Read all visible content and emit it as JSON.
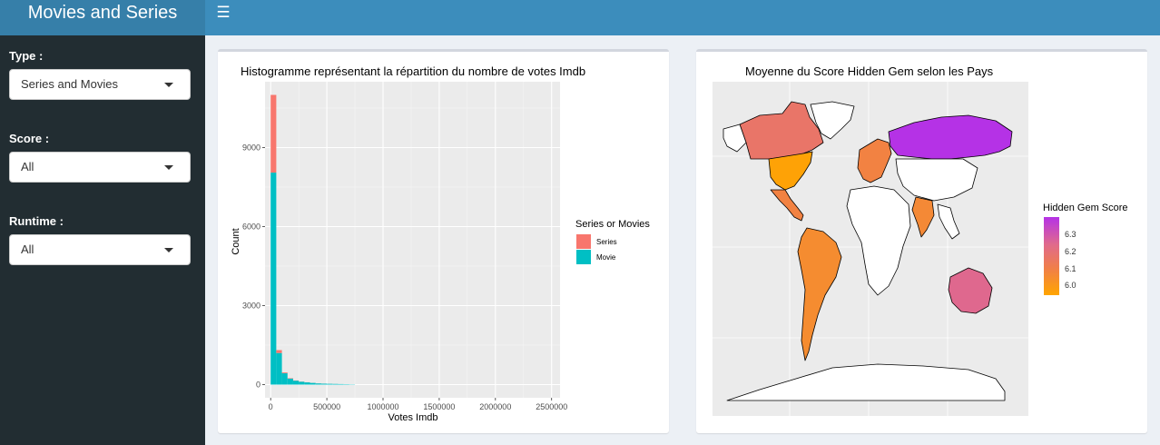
{
  "header": {
    "title": "Movies and Series",
    "menu_icon": "hamburger-icon"
  },
  "sidebar": {
    "filters": [
      {
        "label": "Type :",
        "value": "Series and Movies"
      },
      {
        "label": "Score :",
        "value": "All"
      },
      {
        "label": "Runtime :",
        "value": "All"
      }
    ]
  },
  "histogram": {
    "chart_data": {
      "type": "bar",
      "title": "Histogramme représentant la répartition du nombre de votes Imdb",
      "xlabel": "Votes Imdb",
      "ylabel": "Count",
      "stacked": true,
      "bin_width": 50000,
      "x_ticks": [
        0,
        500000,
        1000000,
        1500000,
        2000000,
        2500000
      ],
      "x_tick_labels": [
        "0",
        "500000",
        "1000000",
        "1500000",
        "2000000",
        "2500000"
      ],
      "y_ticks": [
        0,
        3000,
        6000,
        9000
      ],
      "y_tick_labels": [
        "0",
        "3000",
        "6000",
        "9000"
      ],
      "xlim": [
        -50000,
        2575000
      ],
      "ylim": [
        -500,
        11500
      ],
      "grid": true,
      "legend": {
        "title": "Series or Movies",
        "position": "right"
      },
      "bin_starts": [
        0,
        50000,
        100000,
        150000,
        200000,
        250000,
        300000,
        350000,
        400000,
        450000,
        500000,
        550000,
        600000,
        650000,
        700000
      ],
      "series": [
        {
          "name": "Movie",
          "color": "#00bfc4",
          "values": [
            8050,
            1200,
            430,
            230,
            150,
            110,
            85,
            65,
            45,
            35,
            30,
            25,
            20,
            15,
            10
          ]
        },
        {
          "name": "Series",
          "color": "#f8766d",
          "values": [
            2950,
            110,
            30,
            15,
            8,
            5,
            3,
            2,
            2,
            1,
            1,
            1,
            0,
            0,
            0
          ]
        }
      ],
      "legend_order": [
        "Series",
        "Movie"
      ]
    }
  },
  "map": {
    "title": "Moyenne du Score Hidden Gem selon les Pays",
    "legend": {
      "title": "Hidden Gem Score",
      "ticks": [
        "6.3",
        "6.2",
        "6.1",
        "6.0"
      ],
      "range": [
        5.97,
        6.34
      ],
      "colors": [
        "#ffa500",
        "#f07e4a",
        "#e06a8c",
        "#b532e6"
      ]
    },
    "regions": [
      {
        "name": "canada",
        "score": 6.15
      },
      {
        "name": "usa",
        "score": 5.98
      },
      {
        "name": "mexico",
        "score": 6.08
      },
      {
        "name": "south-america",
        "score": 6.05
      },
      {
        "name": "russia",
        "score": 6.34
      },
      {
        "name": "india",
        "score": 6.06
      },
      {
        "name": "australia",
        "score": 6.22
      },
      {
        "name": "europe-west",
        "score": 6.08
      }
    ]
  }
}
